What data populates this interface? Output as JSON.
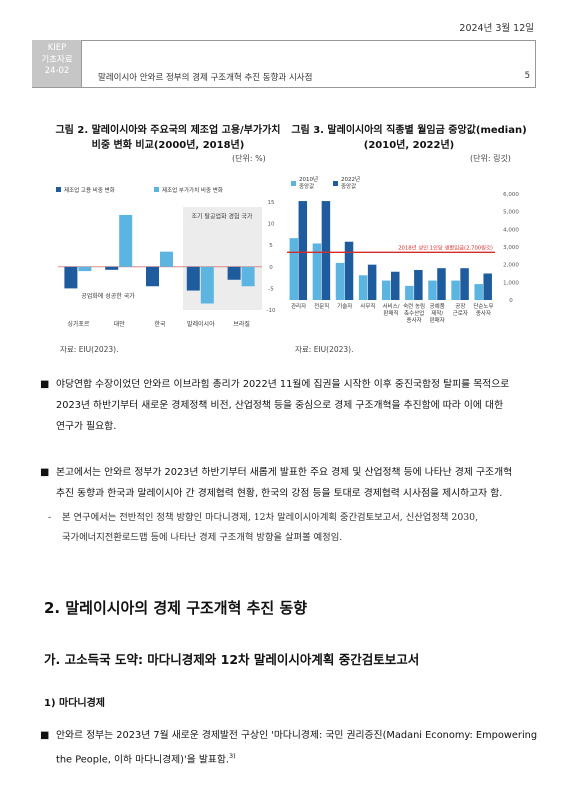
{
  "header": {
    "date": "2024년 3월 12일",
    "series_box": [
      "KIEP",
      "기초자료",
      "24-02"
    ],
    "title": "말레이시아 안와르 정부의 경제 구조개혁 추진 동향과 시사점",
    "page": "5"
  },
  "figure2": {
    "title_line1": "그림 2. 말레이시아와 주요국의 제조업 고용/부가가치",
    "title_line2": "비중 변화 비교(2000년, 2018년)",
    "unit": "(단위: %)",
    "source": "자료: EIU(2023).",
    "chart_data": {
      "type": "bar",
      "categories": [
        "싱가포르",
        "대만",
        "한국",
        "말레이시아",
        "브라질"
      ],
      "series": [
        {
          "name": "제조업 고용 비중 변화",
          "color": "#1f5c9e",
          "values": [
            -5.0,
            -0.7,
            -4.5,
            -5.5,
            -3.0
          ]
        },
        {
          "name": "제조업 부가가치 비중 변화",
          "color": "#5bb5e0",
          "values": [
            -1.0,
            12.0,
            3.5,
            -8.5,
            -4.5
          ]
        }
      ],
      "ylim": [
        -10,
        15
      ],
      "yticks": [
        15,
        10,
        5,
        0,
        -5,
        -10
      ],
      "annotations": [
        "조기 탈공업화 경험 국가",
        "공업화에 성공한 국가"
      ]
    }
  },
  "figure3": {
    "title_line1": "그림 3. 말레이시아의 직종별 월임금 중앙값(median)",
    "title_line2": "(2010년, 2022년)",
    "unit": "(단위: 링깃)",
    "source": "자료: EIU(2023).",
    "chart_data": {
      "type": "bar",
      "categories": [
        "관리자",
        "전문직",
        "기술자",
        "사무직",
        "서비스/판매직",
        "숙련 농림 축수산업 종사자",
        "공예품 제작/판매자",
        "공장 근로자",
        "단순노무 종사자"
      ],
      "category_lines": [
        [
          "관리자"
        ],
        [
          "전문직"
        ],
        [
          "기술자"
        ],
        [
          "사무직"
        ],
        [
          "서비스/",
          "판매직"
        ],
        [
          "숙련 농림",
          "축수산업",
          "종사자"
        ],
        [
          "공예품",
          "제작/",
          "판매자"
        ],
        [
          "공장",
          "근로자"
        ],
        [
          "단순노무",
          "종사자"
        ]
      ],
      "series": [
        {
          "name": "2010년 중앙값",
          "name_lines": [
            "2010년",
            "중앙값"
          ],
          "color": "#5bb5e0",
          "values": [
            3500,
            3200,
            2100,
            1400,
            1100,
            800,
            1100,
            1100,
            900
          ]
        },
        {
          "name": "2022년 중앙값",
          "name_lines": [
            "2022년",
            "중앙값"
          ],
          "color": "#1f5c9e",
          "values": [
            5600,
            5600,
            3300,
            2000,
            1600,
            1700,
            1800,
            1800,
            1500
          ]
        }
      ],
      "reference_line": {
        "value": 2700,
        "label": "2018년 성인 1인당 생활임금(2,700링깃)",
        "color": "#d62b2b"
      },
      "ylim": [
        0,
        6000
      ],
      "yticks": [
        6000,
        5000,
        4000,
        3000,
        2000,
        1000,
        0
      ]
    }
  },
  "body": {
    "bullet": "■",
    "dash": "-",
    "p1_lines": [
      "야당연합 수장이었던 안와르 이브라힘 총리가 2022년 11월에 집권을 시작한 이후 중진국함정 탈피를 목적으로",
      "2023년 하반기부터 새로운 경제정책 비전, 산업정책 등을 중심으로 경제 구조개혁을 추진함에 따라 이에 대한",
      "연구가 필요함."
    ],
    "p2_lines": [
      "본고에서는 안와르 정부가 2023년 하반기부터 새롭게 발표한 주요 경제 및 산업정책 등에 나타난 경제 구조개혁",
      "추진 동향과 한국과 말레이시아 간 경제협력 현황, 한국의 강점 등을 토대로 경제협력 시사점을 제시하고자 함."
    ],
    "sub_lines": [
      "본 연구에서는 전반적인 정책 방향인 마다니경제, 12차 말레이시아계획 중간검토보고서, 신산업정책 2030,",
      "국가에너지전환로드맵 등에 나타난 경제 구조개혁 방향을 살펴볼 예정임."
    ],
    "section2": "2. 말레이시아의 경제 구조개혁 추진 동향",
    "section_ga": "가. 고소득국 도약: 마다니경제와 12차 말레이시아계획 중간검토보고서",
    "section_1": "1) 마다니경제",
    "p3_line1": "안와르 정부는 2023년 7월 새로운 경제발전 구상인 '마다니경제: 국민 권리증진(Madani Economy: Empowering",
    "p3_line2": "the People, 이하 마다니경제)'을 발표함.",
    "p3_footnote": "3)"
  }
}
